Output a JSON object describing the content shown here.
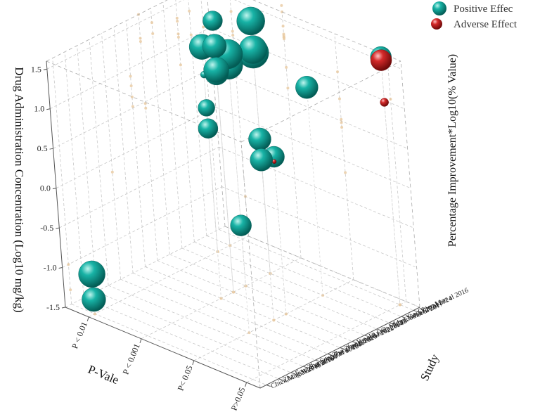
{
  "chart_data": {
    "type": "scatter",
    "subtype": "3d-bubble",
    "title": "",
    "zlabel": "Drug Administration Concentration (Log10 mg/kg)",
    "xlabel": "P-Vale",
    "ylabel": "Study",
    "size_label": "Percentage Improvement*Log10(% Value)",
    "z_ticks": [
      "1.5",
      "1.0",
      "0.5",
      "0.0",
      "-0.5",
      "-1.0",
      "-1.5"
    ],
    "z_range": [
      -1.5,
      1.6
    ],
    "p_categories": [
      "P < 0.01",
      "P < 0.001",
      "P< 0.05",
      "P>0.05"
    ],
    "studies": [
      "Chien,M.et al 2016",
      "Yang,Y.et al 2024",
      "Ling,Y.et al 2024",
      "O. Mahmood.et al 2017",
      "Li,J.et al 2023",
      "Yang,R.et al 2024",
      "Zhang,S.et al 2022",
      "Zhao,J.et al 2020",
      "Song,J.et al 2019",
      "Zhang,W.et al 2018",
      "Feng,S.et al 2017",
      "Zhang,W.et al 2016",
      "Chien,M.et al 2016"
    ],
    "legend": {
      "position": "top-right",
      "entries": [
        {
          "name": "Positive Effec",
          "color": "#16a89c"
        },
        {
          "name": "Adverse Effect",
          "color": "#d42a2a"
        }
      ]
    },
    "series": [
      {
        "name": "Positive Effec",
        "color": "#16a89c",
        "points": [
          {
            "p": 0,
            "s": 12,
            "z": -1.0,
            "r": 19
          },
          {
            "p": 0,
            "s": 12,
            "z": -1.32,
            "r": 17
          },
          {
            "p": 0,
            "s": 1,
            "z": 1.33,
            "r": 14
          },
          {
            "p": 0,
            "s": 1,
            "z": 1.03,
            "r": 14
          },
          {
            "p": 0,
            "s": 2,
            "z": 1.08,
            "r": 18
          },
          {
            "p": 0,
            "s": 2,
            "z": 0.73,
            "r": 5
          },
          {
            "p": 1,
            "s": 2,
            "z": 1.28,
            "r": 22
          },
          {
            "p": 1,
            "s": 2,
            "z": 1.32,
            "r": 20
          },
          {
            "p": 1,
            "s": 2,
            "z": 1.68,
            "r": 20
          },
          {
            "p": 1,
            "s": 4,
            "z": 1.28,
            "r": 20
          },
          {
            "p": 1,
            "s": 4,
            "z": 1.42,
            "r": 21
          },
          {
            "p": 1,
            "s": 5,
            "z": 1.26,
            "r": 17
          },
          {
            "p": 1,
            "s": 5,
            "z": 1.6,
            "r": 17
          },
          {
            "p": 1,
            "s": 5,
            "z": 1.3,
            "r": 18
          },
          {
            "p": 1,
            "s": 6,
            "z": 0.9,
            "r": 12
          },
          {
            "p": 1,
            "s": 6,
            "z": 0.64,
            "r": 14
          },
          {
            "p": 2,
            "s": 2,
            "z": 1.12,
            "r": 16
          },
          {
            "p": 2,
            "s": 6,
            "z": 0.78,
            "r": 16
          },
          {
            "p": 2,
            "s": 6,
            "z": 0.52,
            "r": 16
          },
          {
            "p": 2,
            "s": 5,
            "z": 0.48,
            "r": 15
          },
          {
            "p": 2,
            "s": 8,
            "z": -0.15,
            "r": 15
          },
          {
            "p": 3,
            "s": 0,
            "z": 1.62,
            "r": 15
          }
        ]
      },
      {
        "name": "Adverse Effect",
        "color": "#d42a2a",
        "points": [
          {
            "p": 3,
            "s": 0,
            "z": 1.58,
            "r": 15
          },
          {
            "p": 3,
            "s": 0,
            "z": 1.05,
            "r": 6
          },
          {
            "p": 2,
            "s": 5,
            "z": 0.42,
            "r": 3
          }
        ]
      }
    ]
  }
}
